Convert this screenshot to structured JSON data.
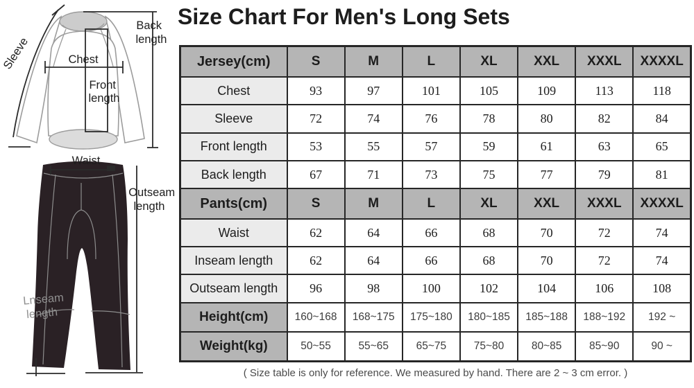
{
  "title": "Size Chart For Men's Long Sets",
  "diagram": {
    "sleeve": "Sleeve",
    "chest": "Chest",
    "front_length": [
      "Front",
      "length"
    ],
    "back_length": [
      "Back",
      "length"
    ],
    "waist": "Waist",
    "outseam_length": [
      "Outseam",
      "length"
    ],
    "inseam_length": [
      "Lnseam",
      "length"
    ]
  },
  "table": {
    "rows": [
      {
        "kind": "size-header",
        "label": "Jersey(cm)",
        "cells": [
          "S",
          "M",
          "L",
          "XL",
          "XXL",
          "XXXL",
          "XXXXL"
        ]
      },
      {
        "kind": "measure",
        "label": "Chest",
        "cells": [
          "93",
          "97",
          "101",
          "105",
          "109",
          "113",
          "118"
        ]
      },
      {
        "kind": "measure",
        "label": "Sleeve",
        "cells": [
          "72",
          "74",
          "76",
          "78",
          "80",
          "82",
          "84"
        ]
      },
      {
        "kind": "measure",
        "label": "Front length",
        "cells": [
          "53",
          "55",
          "57",
          "59",
          "61",
          "63",
          "65"
        ]
      },
      {
        "kind": "measure",
        "label": "Back length",
        "cells": [
          "67",
          "71",
          "73",
          "75",
          "77",
          "79",
          "81"
        ]
      },
      {
        "kind": "size-header",
        "label": "Pants(cm)",
        "cells": [
          "S",
          "M",
          "L",
          "XL",
          "XXL",
          "XXXL",
          "XXXXL"
        ]
      },
      {
        "kind": "measure",
        "label": "Waist",
        "cells": [
          "62",
          "64",
          "66",
          "68",
          "70",
          "72",
          "74"
        ]
      },
      {
        "kind": "measure",
        "label": "Inseam length",
        "cells": [
          "62",
          "64",
          "66",
          "68",
          "70",
          "72",
          "74"
        ]
      },
      {
        "kind": "measure",
        "label": "Outseam length",
        "cells": [
          "96",
          "98",
          "100",
          "102",
          "104",
          "106",
          "108"
        ]
      },
      {
        "kind": "range",
        "label": "Height(cm)",
        "cells": [
          "160~168",
          "168~175",
          "175~180",
          "180~185",
          "185~188",
          "188~192",
          "192 ~"
        ]
      },
      {
        "kind": "range",
        "label": "Weight(kg)",
        "cells": [
          "50~55",
          "55~65",
          "65~75",
          "75~80",
          "80~85",
          "85~90",
          "90 ~"
        ]
      }
    ]
  },
  "note": "( Size table is only for reference. We measured by hand. There are 2 ~ 3 cm error. )",
  "colors": {
    "border": "#262626",
    "header_bg": "#b5b5b5",
    "label_bg": "#ebebeb",
    "cell_bg": "#ffffff",
    "text": "#1d1d1d",
    "range_text": "#3c3c3c",
    "note_text": "#4a4a4a",
    "garment_outline": "#9c9c9c",
    "collar_fill": "#cccccc",
    "hem_fill": "#dcdcdc",
    "pants_fill": "#2a2125",
    "pants_seam": "#8d8d8d",
    "measure_line": "#2b2b2b"
  }
}
